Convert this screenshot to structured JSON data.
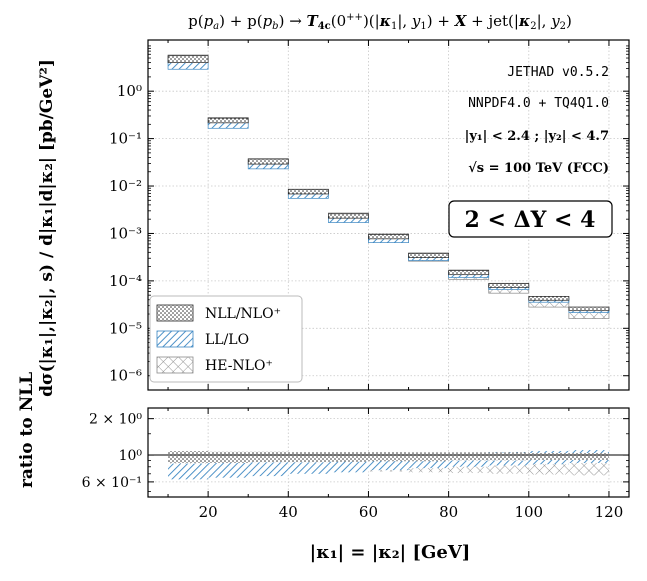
{
  "chart_data": {
    "type": "step-band",
    "title": "p(p_a) + p(p_b) → T_4c(0^{++})(|κ₁|, y₁) + X + jet(|κ₂|, y₂)",
    "xlabel": "|κ₁| = |κ₂| [GeV]",
    "ylabel": "dσ(|κ₁|,|κ₂|, s) / d|κ₁|d|κ₂|  [pb/GeV²]",
    "ratio_ylabel": "ratio to NLL",
    "xlim": [
      5,
      125
    ],
    "ylim": [
      5e-07,
      12
    ],
    "ratio_ylim": [
      0.45,
      2.45
    ],
    "x_ticks": [
      20,
      40,
      60,
      80,
      100,
      120
    ],
    "y_tick_labels": [
      "10^0",
      "10^{-1}",
      "10^{-2}",
      "10^{-3}",
      "10^{-4}",
      "10^{-5}",
      "10^{-6}"
    ],
    "y_ticks": [
      1,
      0.1,
      0.01,
      0.001,
      0.0001,
      1e-05,
      1e-06
    ],
    "ratio_ticks": [
      {
        "v": 2,
        "label": "2 × 10^0"
      },
      {
        "v": 1,
        "label": "10^0"
      },
      {
        "v": 0.6,
        "label": "6 × 10^{-1}"
      }
    ],
    "grid": true,
    "legend_position": "bottom-left",
    "bins": [
      [
        10,
        20
      ],
      [
        20,
        30
      ],
      [
        30,
        40
      ],
      [
        40,
        50
      ],
      [
        50,
        60
      ],
      [
        60,
        70
      ],
      [
        70,
        80
      ],
      [
        80,
        90
      ],
      [
        90,
        100
      ],
      [
        100,
        110
      ],
      [
        110,
        120
      ]
    ],
    "series": [
      {
        "name": "NLL/NLO⁺",
        "style": "dots",
        "color": "#222222",
        "low": [
          4.0,
          0.215,
          0.029,
          0.0068,
          0.0021,
          0.00077,
          0.00031,
          0.000135,
          7.3e-05,
          3.9e-05,
          2.35e-05
        ],
        "high": [
          5.6,
          0.27,
          0.037,
          0.0085,
          0.0026,
          0.00095,
          0.00038,
          0.000165,
          8.8e-05,
          4.7e-05,
          2.8e-05
        ]
      },
      {
        "name": "LL/LO",
        "style": "hatch",
        "color": "#3a86c2",
        "low": [
          2.9,
          0.165,
          0.023,
          0.0055,
          0.0017,
          0.00064,
          0.00027,
          0.000118,
          6.6e-05,
          3.55e-05,
          2.15e-05
        ],
        "high": [
          4.4,
          0.22,
          0.031,
          0.0073,
          0.0022,
          0.00083,
          0.00034,
          0.000148,
          8.1e-05,
          4.3e-05,
          2.6e-05
        ]
      },
      {
        "name": "HE-NLO⁺",
        "style": "crosshatch",
        "color": "#888888",
        "low": [
          3.9,
          0.205,
          0.028,
          0.0063,
          0.0019,
          0.00066,
          0.00026,
          0.000107,
          5.5e-05,
          2.8e-05,
          1.6e-05
        ],
        "high": [
          5.8,
          0.28,
          0.038,
          0.0086,
          0.0027,
          0.00098,
          0.00039,
          0.00017,
          8.9e-05,
          4.7e-05,
          2.8e-05
        ]
      }
    ],
    "ratio_series": [
      {
        "name": "NLL/NLO⁺",
        "low": [
          0.86,
          0.86,
          0.87,
          0.87,
          0.88,
          0.89,
          0.89,
          0.9,
          0.9,
          0.91,
          0.91
        ],
        "high": [
          1.08,
          1.07,
          1.07,
          1.06,
          1.06,
          1.06,
          1.05,
          1.05,
          1.05,
          1.04,
          1.04
        ]
      },
      {
        "name": "LL/LO",
        "low": [
          0.63,
          0.65,
          0.67,
          0.7,
          0.72,
          0.75,
          0.78,
          0.8,
          0.82,
          0.84,
          0.86
        ],
        "high": [
          0.85,
          0.88,
          0.91,
          0.93,
          0.95,
          0.98,
          1.01,
          1.03,
          1.06,
          1.08,
          1.1
        ]
      },
      {
        "name": "HE-NLO⁺",
        "low": [
          0.8,
          0.79,
          0.77,
          0.76,
          0.75,
          0.73,
          0.72,
          0.71,
          0.7,
          0.69,
          0.68
        ],
        "high": [
          1.06,
          1.05,
          1.04,
          1.03,
          1.02,
          1.01,
          1.0,
          0.99,
          0.99,
          0.98,
          0.97
        ]
      }
    ],
    "annotations": {
      "generator": "JETHAD v0.5.2",
      "pdf": "NNPDF4.0 + TQ4Q1.0",
      "cuts": "|y₁| < 2.4 ;  |y₂| < 4.7",
      "energy": "√s = 100 TeV (FCC)",
      "rapidity_window": "2 < ΔY < 4"
    }
  }
}
